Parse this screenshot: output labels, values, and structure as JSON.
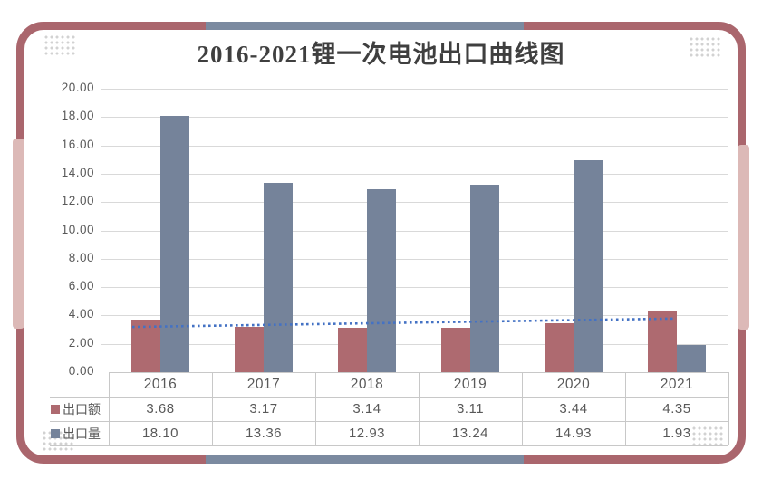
{
  "title": "2016-2021锂一次电池出口曲线图",
  "chart_data": {
    "type": "bar",
    "title": "2016-2021锂一次电池出口曲线图",
    "categories": [
      "2016",
      "2017",
      "2018",
      "2019",
      "2020",
      "2021"
    ],
    "series": [
      {
        "name": "出口额",
        "values": [
          3.68,
          3.17,
          3.14,
          3.11,
          3.44,
          4.35
        ]
      },
      {
        "name": "出口量",
        "values": [
          18.1,
          13.36,
          12.93,
          13.24,
          14.93,
          1.93
        ]
      }
    ],
    "trendline": {
      "type": "linear",
      "of_series": "出口额",
      "start_value": 3.19,
      "end_value": 3.78,
      "style": "dotted"
    },
    "ylim": [
      0,
      20
    ],
    "ytick_step": 2,
    "ytick_labels": [
      "0.00",
      "2.00",
      "4.00",
      "6.00",
      "8.00",
      "10.00",
      "12.00",
      "14.00",
      "16.00",
      "18.00",
      "20.00"
    ],
    "grid": true,
    "legend_position": "data-table-left",
    "data_table_shown": true
  },
  "table": {
    "column_headers": [
      "2016",
      "2017",
      "2018",
      "2019",
      "2020",
      "2021"
    ],
    "rows": [
      {
        "label": "出口额",
        "values": [
          "3.68",
          "3.17",
          "3.14",
          "3.11",
          "3.44",
          "4.35"
        ]
      },
      {
        "label": "出口量",
        "values": [
          "18.10",
          "13.36",
          "12.93",
          "13.24",
          "14.93",
          "1.93"
        ]
      }
    ]
  },
  "colors": {
    "bar_export_value": "#ae6a70",
    "bar_export_volume": "#75839a",
    "trendline": "#4472c4",
    "frame_border": "#aa666d",
    "frame_accent_blue": "#7b8aa0",
    "frame_accent_pink": "#dcb9b7",
    "gridline": "#d9d9d9",
    "table_border": "#c8c8c8",
    "axis_text": "#595959",
    "title_text": "#3f3f3f",
    "dot_decoration": "#d2d2d2"
  }
}
